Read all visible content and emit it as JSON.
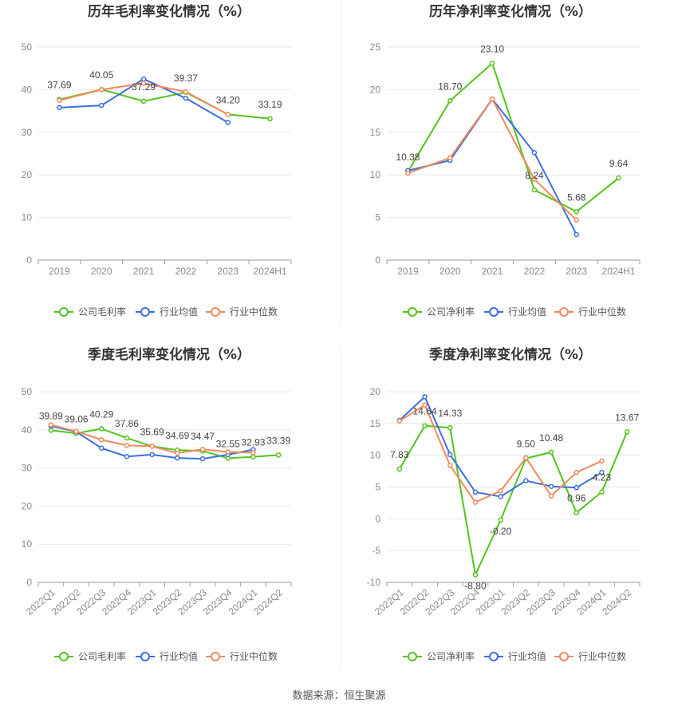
{
  "source_label": "数据来源：恒生聚源",
  "colors": {
    "company": "#52c41a",
    "industry_avg": "#3a6fe0",
    "industry_median": "#f08a5d"
  },
  "chart_data": [
    {
      "type": "line",
      "title": "历年毛利率变化情况（%）",
      "categories": [
        "2019",
        "2020",
        "2021",
        "2022",
        "2023",
        "2024H1"
      ],
      "ylim": [
        0,
        50
      ],
      "yticks": [
        0,
        10,
        20,
        30,
        40,
        50
      ],
      "grid": true,
      "legend": "bottom",
      "series": [
        {
          "name": "公司毛利率",
          "color": "#52c41a",
          "labels": true,
          "values": [
            37.69,
            40.05,
            37.29,
            39.37,
            34.2,
            33.19
          ]
        },
        {
          "name": "行业均值",
          "color": "#3a6fe0",
          "values": [
            35.8,
            36.3,
            42.5,
            38.0,
            32.3,
            null
          ]
        },
        {
          "name": "行业中位数",
          "color": "#f08a5d",
          "values": [
            37.5,
            40.0,
            41.5,
            39.5,
            34.2,
            null
          ]
        }
      ],
      "data_label_texts": [
        "37.69",
        "40.05",
        "37.29",
        "39.37",
        "34.20",
        "33.19"
      ]
    },
    {
      "type": "line",
      "title": "历年净利率变化情况（%）",
      "categories": [
        "2019",
        "2020",
        "2021",
        "2022",
        "2023",
        "2024H1"
      ],
      "ylim": [
        0,
        25
      ],
      "yticks": [
        0,
        5,
        10,
        15,
        20,
        25
      ],
      "grid": true,
      "legend": "bottom",
      "series": [
        {
          "name": "公司净利率",
          "color": "#52c41a",
          "labels": true,
          "values": [
            10.38,
            18.7,
            23.1,
            8.24,
            5.68,
            9.64
          ]
        },
        {
          "name": "行业均值",
          "color": "#3a6fe0",
          "values": [
            10.5,
            11.7,
            18.9,
            12.6,
            3.0,
            null
          ]
        },
        {
          "name": "行业中位数",
          "color": "#f08a5d",
          "values": [
            10.2,
            12.0,
            18.9,
            9.5,
            4.7,
            null
          ]
        }
      ],
      "data_label_texts": [
        "10.38",
        "18.70",
        "23.10",
        "8.24",
        "5.68",
        "9.64"
      ]
    },
    {
      "type": "line",
      "title": "季度毛利率变化情况（%）",
      "categories": [
        "2022Q1",
        "2022Q2",
        "2022Q3",
        "2022Q4",
        "2023Q1",
        "2023Q2",
        "2023Q3",
        "2023Q4",
        "2024Q1",
        "2024Q2"
      ],
      "ylim": [
        0,
        50
      ],
      "yticks": [
        0,
        10,
        20,
        30,
        40,
        50
      ],
      "grid": true,
      "legend": "bottom",
      "series": [
        {
          "name": "公司毛利率",
          "color": "#52c41a",
          "labels": true,
          "values": [
            39.89,
            39.06,
            40.29,
            37.86,
            35.69,
            34.69,
            34.47,
            32.55,
            32.93,
            33.39
          ]
        },
        {
          "name": "行业均值",
          "color": "#3a6fe0",
          "values": [
            41.0,
            39.5,
            35.2,
            33.0,
            33.5,
            32.6,
            32.4,
            33.5,
            34.8,
            null
          ]
        },
        {
          "name": "行业中位数",
          "color": "#f08a5d",
          "values": [
            41.3,
            39.6,
            37.4,
            35.9,
            35.7,
            33.9,
            34.9,
            34.2,
            34.0,
            null
          ]
        }
      ],
      "data_label_texts": [
        "39.89",
        "39.06",
        "40.29",
        "37.86",
        "35.69",
        "34.69",
        "34.47",
        "32.55",
        "32.93",
        "33.39"
      ]
    },
    {
      "type": "line",
      "title": "季度净利率变化情况（%）",
      "categories": [
        "2022Q1",
        "2022Q2",
        "2022Q3",
        "2022Q4",
        "2023Q1",
        "2023Q2",
        "2023Q3",
        "2023Q4",
        "2024Q1",
        "2024Q2"
      ],
      "ylim": [
        -10,
        20
      ],
      "yticks": [
        -10,
        -5,
        0,
        5,
        10,
        15,
        20
      ],
      "grid": true,
      "legend": "bottom",
      "series": [
        {
          "name": "公司净利率",
          "color": "#52c41a",
          "labels": true,
          "values": [
            7.83,
            14.64,
            14.33,
            -8.8,
            -0.2,
            9.5,
            10.48,
            0.96,
            4.23,
            13.67
          ]
        },
        {
          "name": "行业均值",
          "color": "#3a6fe0",
          "values": [
            15.5,
            19.2,
            10.1,
            4.2,
            3.5,
            6.0,
            5.1,
            4.9,
            7.3,
            null
          ]
        },
        {
          "name": "行业中位数",
          "color": "#f08a5d",
          "values": [
            15.4,
            17.9,
            8.4,
            2.6,
            4.4,
            9.6,
            3.6,
            7.3,
            9.1,
            null
          ]
        }
      ],
      "data_label_texts": [
        "7.83",
        "14.64",
        "14.33",
        "-8.80",
        "-0.20",
        "9.50",
        "10.48",
        "0.96",
        "4.23",
        "13.67"
      ]
    }
  ]
}
